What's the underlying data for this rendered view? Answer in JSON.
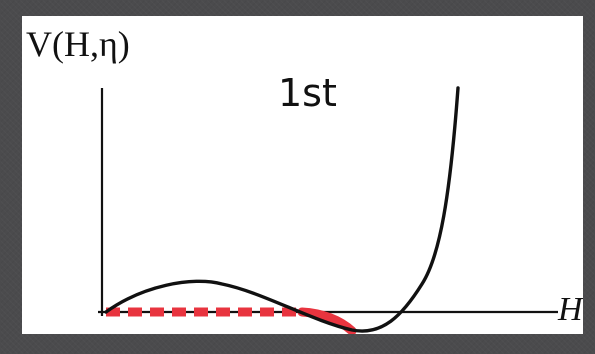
{
  "diagram": {
    "y_axis_label": "V(H,η)",
    "x_axis_label": "H",
    "annotation": "1st",
    "colors": {
      "background": "#4b4b4d",
      "panel": "#ffffff",
      "axis": "#111111",
      "potential_curve": "#111111",
      "field_path": "#e8343f"
    }
  }
}
